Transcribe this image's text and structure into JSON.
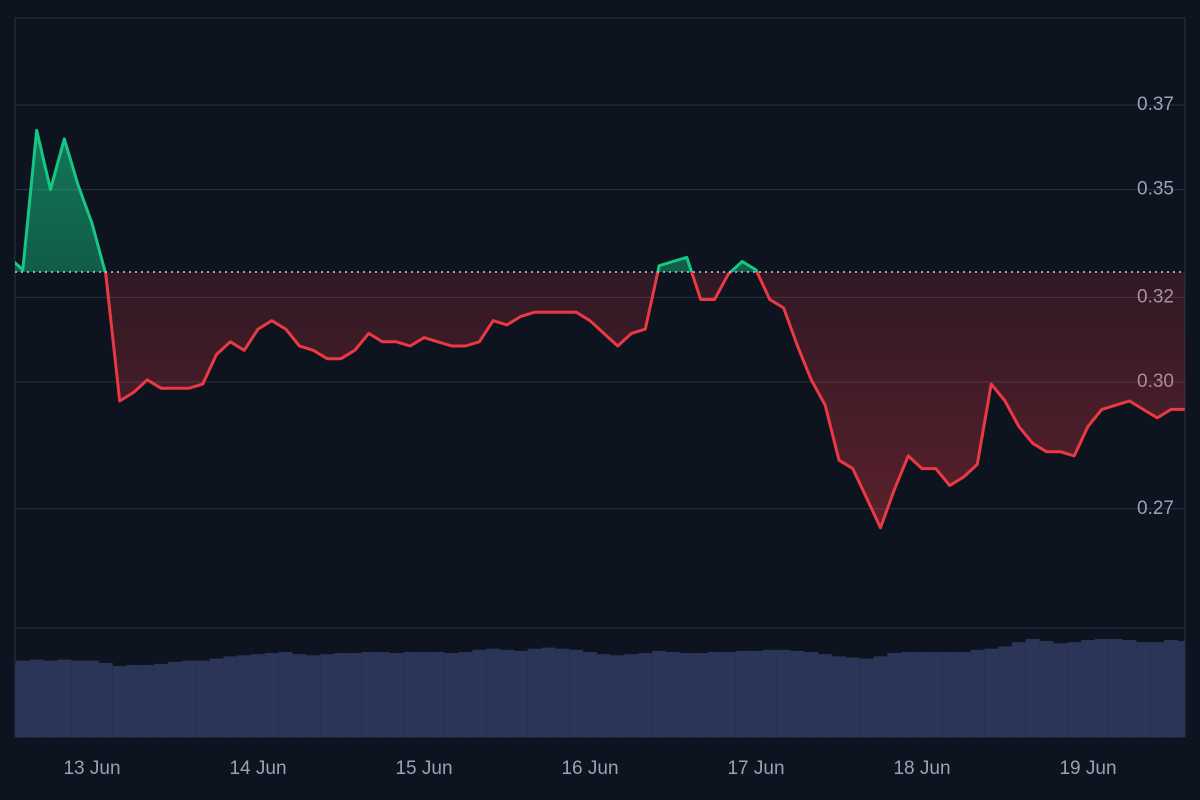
{
  "chart_data": {
    "type": "line",
    "categories": [
      null,
      null,
      null,
      null,
      null,
      null,
      "13 Jun",
      null,
      null,
      null,
      null,
      null,
      null,
      null,
      null,
      null,
      null,
      null,
      "14 Jun",
      null,
      null,
      null,
      null,
      null,
      null,
      null,
      null,
      null,
      null,
      null,
      "15 Jun",
      null,
      null,
      null,
      null,
      null,
      null,
      null,
      null,
      null,
      null,
      null,
      "16 Jun",
      null,
      null,
      null,
      null,
      null,
      null,
      null,
      null,
      null,
      null,
      null,
      "17 Jun",
      null,
      null,
      null,
      null,
      null,
      null,
      null,
      null,
      null,
      null,
      null,
      "18 Jun",
      null,
      null,
      null,
      null,
      null,
      null,
      null,
      null,
      null,
      null,
      null,
      "19 Jun",
      null,
      null,
      null,
      null,
      null,
      null,
      null
    ],
    "series": [
      {
        "values": [
          0.334,
          0.331,
          0.364,
          0.35,
          0.362,
          0.351,
          0.342,
          0.33,
          0.3,
          0.302,
          0.305,
          0.303,
          0.303,
          0.303,
          0.304,
          0.311,
          0.314,
          0.312,
          0.317,
          0.319,
          0.317,
          0.313,
          0.312,
          0.31,
          0.31,
          0.312,
          0.316,
          0.314,
          0.314,
          0.313,
          0.315,
          0.314,
          0.313,
          0.313,
          0.314,
          0.319,
          0.318,
          0.32,
          0.321,
          0.321,
          0.321,
          0.321,
          0.319,
          0.316,
          0.313,
          0.316,
          0.317,
          0.332,
          0.333,
          0.334,
          0.324,
          0.324,
          0.33,
          0.333,
          0.331,
          0.324,
          0.322,
          0.313,
          0.305,
          0.299,
          0.286,
          0.284,
          0.277,
          0.27,
          0.279,
          0.287,
          0.284,
          0.284,
          0.28,
          0.282,
          0.285,
          0.304,
          0.3,
          0.294,
          0.29,
          0.288,
          0.288,
          0.287,
          0.294,
          0.298,
          0.299,
          0.3,
          0.298,
          0.296,
          0.298,
          0.298
        ],
        "up_color": "#16c784",
        "down_color": "#ea3943"
      }
    ],
    "baseline": 0.3305,
    "volume": {
      "color": "#2b3558",
      "values": [
        68,
        70,
        71,
        70,
        71,
        70,
        70,
        68,
        65,
        66,
        66,
        67,
        69,
        70,
        70,
        72,
        74,
        75,
        76,
        77,
        78,
        76,
        75,
        76,
        77,
        77,
        78,
        78,
        77,
        78,
        78,
        78,
        77,
        78,
        80,
        81,
        80,
        79,
        81,
        82,
        81,
        80,
        78,
        76,
        75,
        76,
        77,
        79,
        78,
        77,
        77,
        78,
        78,
        79,
        79,
        80,
        80,
        79,
        78,
        76,
        74,
        73,
        72,
        74,
        77,
        78,
        78,
        78,
        78,
        78,
        80,
        81,
        83,
        87,
        90,
        88,
        86,
        87,
        89,
        90,
        90,
        89,
        87,
        87,
        89,
        88
      ],
      "lim": [
        0,
        100
      ]
    },
    "ylim": [
      0.2463,
      0.3906
    ],
    "yticks": [
      {
        "value": 0.2745,
        "label": "0.27"
      },
      {
        "value": 0.3045,
        "label": "0.30"
      },
      {
        "value": 0.3245,
        "label": "0.32"
      },
      0.35,
      0.37
    ],
    "grid": true
  }
}
